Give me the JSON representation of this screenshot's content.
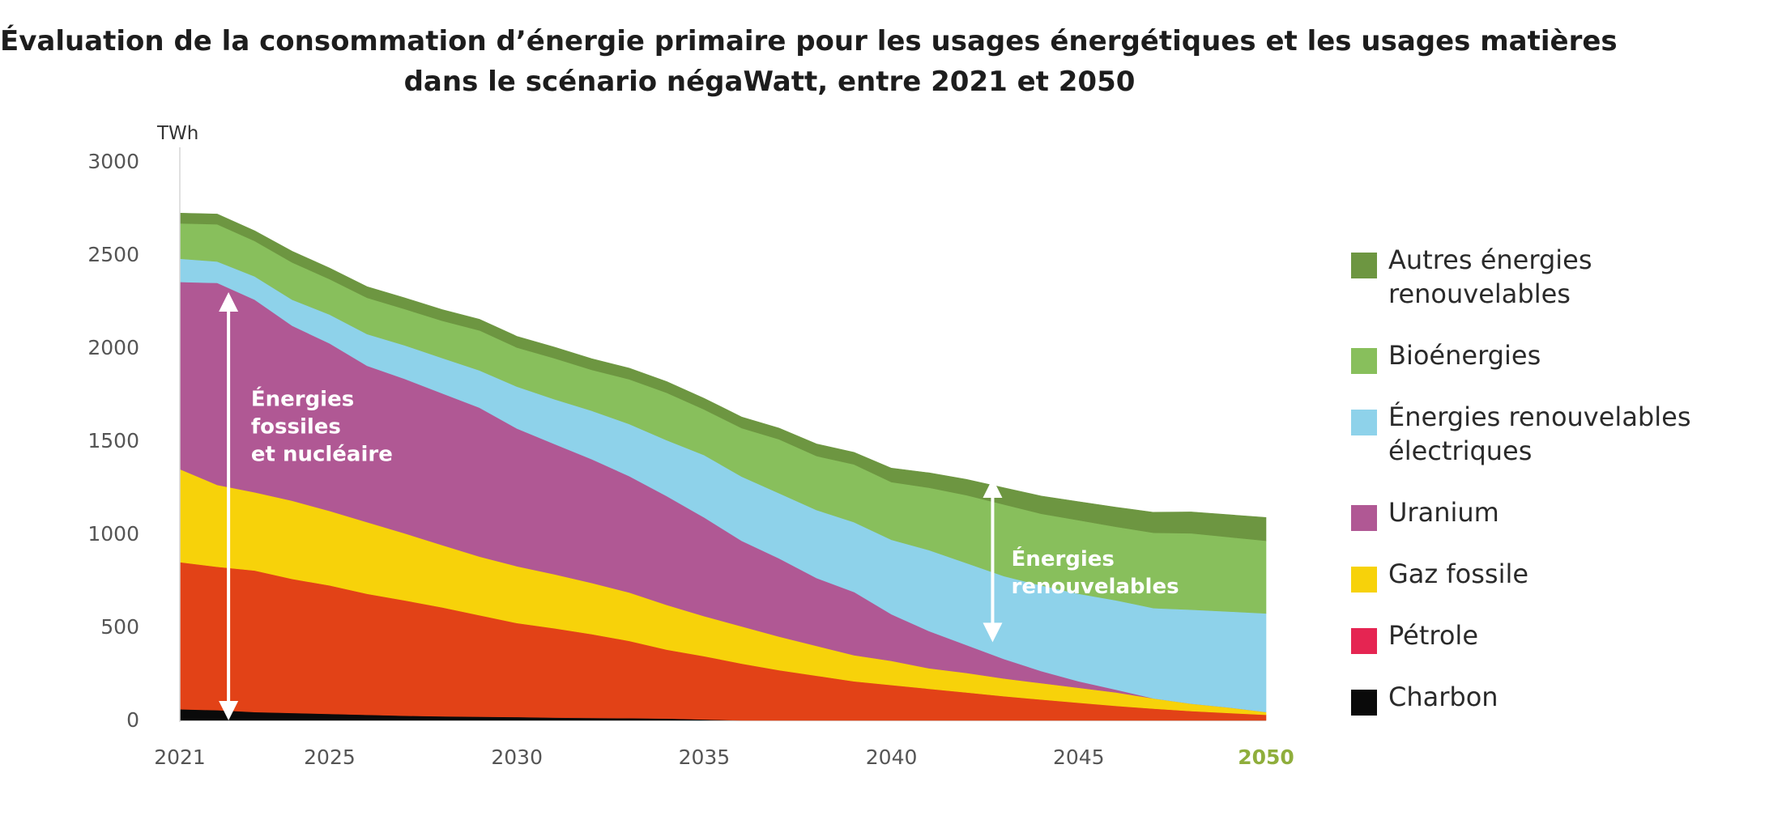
{
  "chart_data": {
    "type": "area",
    "stacked": true,
    "title": "Évaluation de la consommation d’énergie primaire pour les usages énergétiques et les usages matières",
    "subtitle": "dans le scénario négaWatt, entre 2021 et 2050",
    "ylabel": "TWh",
    "xlabel": "",
    "ylim": [
      0,
      3000
    ],
    "xlim": [
      2021,
      2050
    ],
    "yticks": [
      0,
      500,
      1000,
      1500,
      2000,
      2500,
      3000
    ],
    "xticks": [
      2021,
      2025,
      2030,
      2035,
      2040,
      2045,
      2050
    ],
    "xtick_labels": [
      "2021",
      "2025",
      "2030",
      "2035",
      "2040",
      "2045",
      "2050"
    ],
    "ytick_labels": [
      "0",
      "500",
      "1000",
      "1500",
      "2000",
      "2500",
      "3000"
    ],
    "highlight_tick": "2050",
    "highlight_color": "#8fae3c",
    "grid": false,
    "legend_position": "right",
    "x": [
      2021,
      2022,
      2023,
      2024,
      2025,
      2026,
      2027,
      2028,
      2029,
      2030,
      2031,
      2032,
      2033,
      2034,
      2035,
      2036,
      2037,
      2038,
      2039,
      2040,
      2041,
      2042,
      2043,
      2044,
      2045,
      2046,
      2047,
      2048,
      2049,
      2050
    ],
    "series": [
      {
        "name": "Charbon",
        "color": "#0a0a0a",
        "values": [
          60,
          55,
          45,
          40,
          35,
          30,
          25,
          22,
          20,
          18,
          15,
          13,
          12,
          10,
          5,
          0,
          0,
          0,
          0,
          0,
          0,
          0,
          0,
          0,
          0,
          0,
          0,
          0,
          0,
          0
        ]
      },
      {
        "name": "Pétrole",
        "color": "#e24217",
        "values": [
          790,
          770,
          760,
          720,
          690,
          650,
          620,
          585,
          545,
          505,
          480,
          450,
          415,
          370,
          340,
          305,
          270,
          240,
          210,
          190,
          170,
          150,
          130,
          112,
          95,
          78,
          63,
          50,
          40,
          30
        ]
      },
      {
        "name": "Gaz fossile",
        "color": "#f7d20a",
        "values": [
          500,
          440,
          420,
          420,
          400,
          385,
          360,
          335,
          315,
          305,
          290,
          275,
          260,
          240,
          215,
          200,
          180,
          160,
          140,
          130,
          110,
          105,
          95,
          88,
          80,
          72,
          55,
          40,
          30,
          15
        ]
      },
      {
        "name": "Uranium",
        "color": "#b05894",
        "values": [
          1005,
          1085,
          1035,
          940,
          900,
          840,
          830,
          815,
          800,
          740,
          700,
          665,
          625,
          585,
          530,
          460,
          420,
          365,
          340,
          250,
          200,
          150,
          105,
          65,
          35,
          15,
          0,
          0,
          0,
          0
        ]
      },
      {
        "name": "Énergies renouvelables électriques",
        "color": "#8ed2ea",
        "values": [
          125,
          115,
          125,
          140,
          155,
          170,
          180,
          190,
          200,
          225,
          240,
          260,
          280,
          300,
          335,
          345,
          350,
          365,
          375,
          400,
          435,
          440,
          445,
          460,
          470,
          480,
          485,
          505,
          515,
          530
        ]
      },
      {
        "name": "Bioénergies",
        "color": "#88bf5c",
        "values": [
          190,
          200,
          190,
          200,
          190,
          195,
          195,
          200,
          215,
          210,
          220,
          220,
          240,
          255,
          245,
          260,
          290,
          290,
          310,
          310,
          335,
          365,
          385,
          385,
          395,
          395,
          405,
          410,
          400,
          390
        ]
      },
      {
        "name": "Autres énergies renouvelables",
        "color": "#6d9641",
        "values": [
          55,
          55,
          55,
          60,
          60,
          60,
          60,
          60,
          60,
          60,
          60,
          60,
          60,
          60,
          60,
          60,
          60,
          65,
          65,
          75,
          80,
          85,
          90,
          95,
          100,
          105,
          110,
          115,
          120,
          125
        ]
      }
    ],
    "annotations": [
      {
        "text_lines": [
          "Énergies",
          "fossiles",
          "et nucléaire"
        ],
        "color": "#ffffff",
        "arrow_x": 2022.3,
        "arrow_y": [
          0,
          2300
        ],
        "label_x": 2022.9,
        "label_y": 1690
      },
      {
        "text_lines": [
          "Énergies",
          "renouvelables"
        ],
        "color": "#ffffff",
        "arrow_x": 2042.7,
        "arrow_y": [
          420,
          1300
        ],
        "label_x": 2043.2,
        "label_y": 830
      }
    ]
  },
  "legend": {
    "items": [
      {
        "label": "Autres énergies renouvelables",
        "color": "#6d9641"
      },
      {
        "label": "Bioénergies",
        "color": "#88bf5c"
      },
      {
        "label": "Énergies renouvelables électriques",
        "color": "#8ed2ea"
      },
      {
        "label": "Uranium",
        "color": "#b05894"
      },
      {
        "label": "Gaz fossile",
        "color": "#f7d20a"
      },
      {
        "label": "Pétrole",
        "color": "#e52552"
      },
      {
        "label": "Charbon",
        "color": "#0a0a0a"
      }
    ]
  }
}
